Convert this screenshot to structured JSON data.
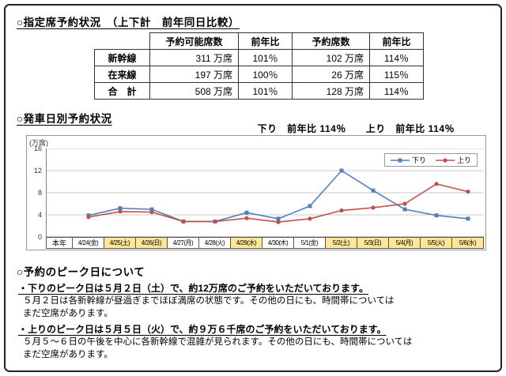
{
  "colors": {
    "page_border": "#222222",
    "table_border": "#333333",
    "chart_border": "#999999",
    "grid_line": "#c9c9c9",
    "axis_line": "#808080"
  },
  "sections": {
    "reservation": {
      "title": "○指定席予約状況　（上下計　前年同日比較）"
    },
    "departure": {
      "title": "○発車日別予約状況",
      "annotation": "下り　前年比 114％　　上り　前年比 114％"
    },
    "peak": {
      "title": "○予約のピーク日について",
      "items": [
        {
          "lead": "・下りのピーク日は５月２日（土）で、約12万席のご予約をいただいております。",
          "detail": "５月２日は各新幹線が昼過ぎまでほぼ満席の状態です。その他の日にも、時間帯については\nまだ空席があります。"
        },
        {
          "lead": "・上りのピーク日は５月５日（火）で、約９万６千席のご予約をいただいております。",
          "detail": "５月５～６日の午後を中心に各新幹線で混雑が見られます。その他の日にも、時間帯については\nまだ空席があります。"
        }
      ]
    }
  },
  "reservation_table": {
    "headers": [
      "",
      "予約可能席数",
      "前年比",
      "予約席数",
      "前年比"
    ],
    "rows": [
      [
        "新幹線",
        "311 万席",
        "101％",
        "102 万席",
        "114％"
      ],
      [
        "在来線",
        "197 万席",
        "100％",
        "26 万席",
        "115％"
      ],
      [
        "合　計",
        "508 万席",
        "101％",
        "128 万席",
        "114％"
      ]
    ]
  },
  "chart_data": {
    "type": "line",
    "title": "発車日別予約状況",
    "ylabel_unit": "(万席)",
    "ylim": [
      0,
      16
    ],
    "yticks": [
      0,
      4,
      8,
      12,
      16
    ],
    "grid": true,
    "legend_position": "top-right",
    "x_header": "本年",
    "categories": [
      "4/24(金)",
      "4/25(土)",
      "4/26(日)",
      "4/27(月)",
      "4/28(火)",
      "4/29(水)",
      "4/30(木)",
      "5/1(金)",
      "5/2(土)",
      "5/3(日)",
      "5/4(月)",
      "5/5(火)",
      "5/6(水)"
    ],
    "highlighted": [
      false,
      true,
      true,
      false,
      false,
      true,
      false,
      false,
      true,
      true,
      true,
      true,
      true
    ],
    "highlight_color": "#ffe699",
    "series": [
      {
        "key": "down",
        "name": "下り",
        "color": "#4f81bd",
        "marker": "square",
        "values": [
          3.9,
          5.2,
          5.0,
          2.8,
          2.8,
          4.4,
          3.3,
          5.6,
          12.0,
          8.4,
          5.0,
          3.9,
          3.3
        ]
      },
      {
        "key": "up",
        "name": "上り",
        "color": "#c0504d",
        "marker": "circle",
        "values": [
          3.6,
          4.6,
          4.5,
          2.8,
          2.8,
          3.4,
          2.7,
          3.3,
          4.8,
          5.3,
          6.0,
          9.6,
          8.2
        ]
      }
    ]
  }
}
